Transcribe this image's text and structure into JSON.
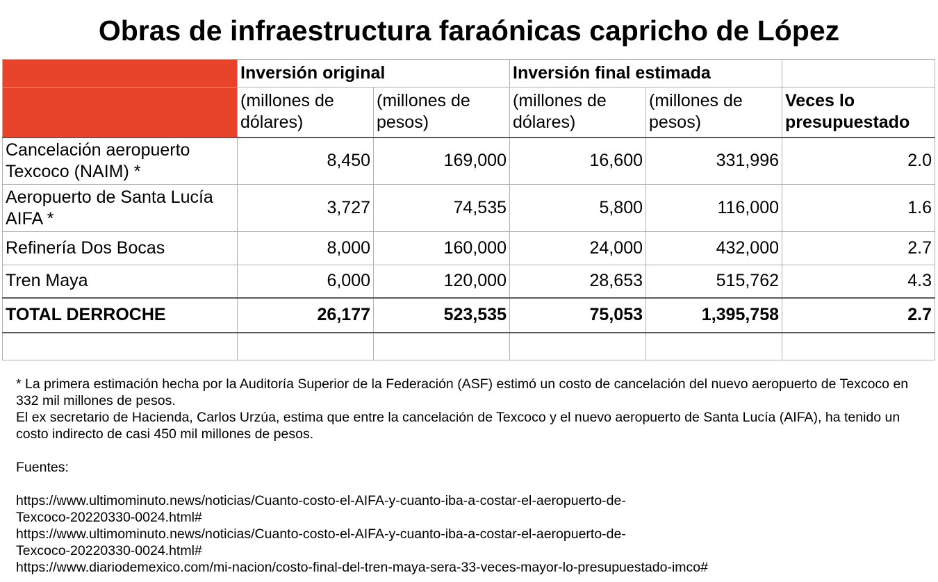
{
  "title": "Obras de infraestructura faraónicas capricho de López",
  "table": {
    "header_row1": {
      "inversion_original": "Inversión original",
      "inversion_final": "Inversión final estimada"
    },
    "header_row2": {
      "orig_usd": "(millones de dólares)",
      "orig_mxn": "(millones de pesos)",
      "final_usd": "(millones de dólares)",
      "final_mxn": "(millones de pesos)",
      "veces": "Veces lo presupuestado"
    },
    "rows": [
      {
        "name": "Cancelación aeropuerto Texcoco (NAIM) *",
        "orig_usd": "8,450",
        "orig_mxn": "169,000",
        "final_usd": "16,600",
        "final_mxn": "331,996",
        "veces": "2.0"
      },
      {
        "name": "Aeropuerto de Santa Lucía AIFA *",
        "orig_usd": "3,727",
        "orig_mxn": "74,535",
        "final_usd": "5,800",
        "final_mxn": "116,000",
        "veces": "1.6"
      },
      {
        "name": "Refinería Dos Bocas",
        "orig_usd": "8,000",
        "orig_mxn": "160,000",
        "final_usd": "24,000",
        "final_mxn": "432,000",
        "veces": "2.7"
      },
      {
        "name": "Tren Maya",
        "orig_usd": "6,000",
        "orig_mxn": "120,000",
        "final_usd": "28,653",
        "final_mxn": "515,762",
        "veces": "4.3"
      }
    ],
    "total": {
      "name": "TOTAL DERROCHE",
      "orig_usd": "26,177",
      "orig_mxn": "523,535",
      "final_usd": "75,053",
      "final_mxn": "1,395,758",
      "veces": "2.7"
    }
  },
  "notes": {
    "asf_note": "* La primera estimación hecha por la Auditoría Superior de la Federación (ASF) estimó un costo de cancelación del nuevo aeropuerto de Texcoco en 332 mil millones de pesos.",
    "urzua_note": "El ex secretario de Hacienda, Carlos Urzúa, estima que entre la cancelación de Texcoco y el nuevo aeropuerto de Santa Lucía (AIFA), ha tenido un costo indirecto de casi 450 mil millones de pesos.",
    "sources_label": "Fuentes:",
    "source_1": "https://www.ultimominuto.news/noticias/Cuanto-costo-el-AIFA-y-cuanto-iba-a-costar-el-aeropuerto-de-\nTexcoco-20220330-0024.html#",
    "source_2": "https://www.ultimominuto.news/noticias/Cuanto-costo-el-AIFA-y-cuanto-iba-a-costar-el-aeropuerto-de-\nTexcoco-20220330-0024.html#",
    "source_3": "https://www.diariodemexico.com/mi-nacion/costo-final-del-tren-maya-sera-33-veces-mayor-lo-presupuestado-imco#"
  }
}
